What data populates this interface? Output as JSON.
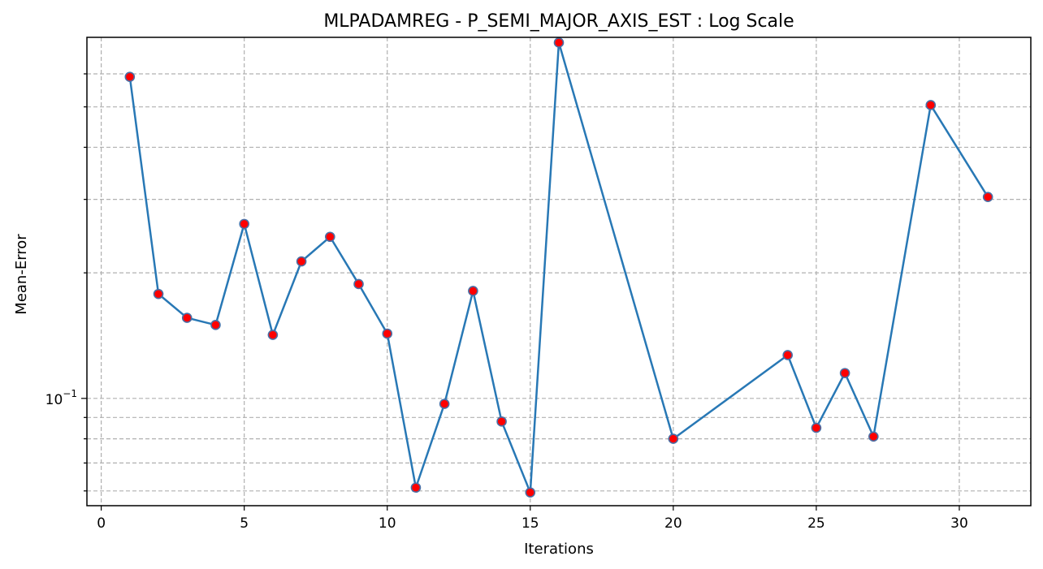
{
  "chart_data": {
    "type": "line",
    "title": "MLPADAMREG - P_SEMI_MAJOR_AXIS_EST : Log Scale",
    "xlabel": "Iterations",
    "ylabel": "Mean-Error",
    "x_scale": "linear",
    "y_scale": "log",
    "xlim": [
      -0.5,
      32.5
    ],
    "ylim": [
      0.0553,
      0.734
    ],
    "x_ticks": [
      0,
      5,
      10,
      15,
      20,
      25,
      30
    ],
    "x_tick_labels": [
      "0",
      "5",
      "10",
      "15",
      "20",
      "25",
      "30"
    ],
    "y_major_ticks": [
      0.1
    ],
    "y_major_tick_labels": [
      "10",
      "−1"
    ],
    "y_minor_ticks": [
      0.06,
      0.07,
      0.08,
      0.09,
      0.2,
      0.3,
      0.4,
      0.5,
      0.6
    ],
    "grid": true,
    "legend": "none",
    "series": [
      {
        "x": [
          1,
          2,
          3,
          4,
          5,
          6,
          7,
          8,
          9,
          10,
          11,
          12,
          13,
          14,
          15,
          16,
          20,
          24,
          25,
          26,
          27,
          29,
          31
        ],
        "y": [
          0.59,
          0.178,
          0.156,
          0.15,
          0.262,
          0.142,
          0.213,
          0.244,
          0.188,
          0.143,
          0.0611,
          0.097,
          0.181,
          0.088,
          0.0595,
          0.713,
          0.08,
          0.127,
          0.085,
          0.115,
          0.081,
          0.505,
          0.304
        ],
        "line_color": "#2878b5",
        "marker_face": "#ff0000",
        "marker_edge": "#4a6fa5"
      }
    ]
  }
}
